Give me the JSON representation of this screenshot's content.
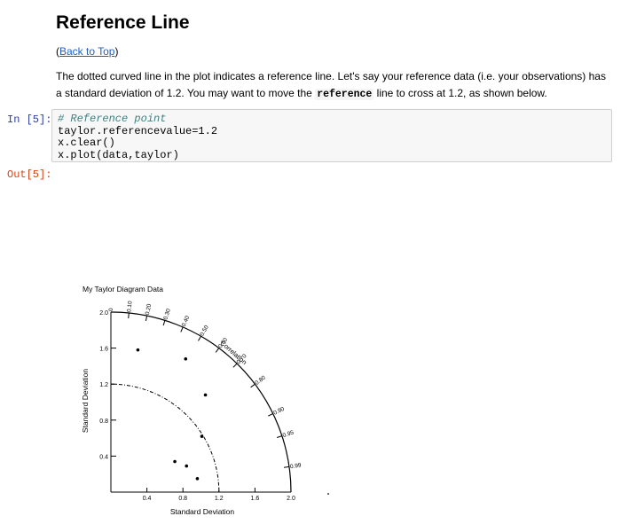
{
  "page": {
    "title": "Reference Line",
    "back_link": "Back to Top",
    "paragraph_before": "The dotted curved line in the plot indicates a reference line. Let's say your reference data (i.e. your observations) has a standard deviation of 1.2. You may want to move the ",
    "paragraph_code": "reference",
    "paragraph_after": " line to cross at 1.2, as shown below."
  },
  "cell": {
    "in_prompt": "In [5]:",
    "out_prompt": "Out[5]:",
    "lines": [
      "# Reference point",
      "taylor.referencevalue=1.2",
      "x.clear()",
      "x.plot(data,taylor)"
    ]
  },
  "chart_data": {
    "type": "scatter",
    "title": "My Taylor Diagram Data",
    "xlabel": "Standard Deviation",
    "ylabel": "Standard Deviation",
    "arc_label": "Correlation",
    "xlim": [
      0,
      2.0
    ],
    "ylim": [
      0,
      2.0
    ],
    "x_ticks": [
      "0.4",
      "0.8",
      "1.2",
      "1.6",
      "2.0"
    ],
    "y_ticks": [
      "0.4",
      "0.8",
      "1.2",
      "1.6",
      "2.0"
    ],
    "correlation_ticks": [
      "0",
      "0.10",
      "0.20",
      "0.30",
      "0.40",
      "0.50",
      "0.60",
      "0.70",
      "0.80",
      "0.90",
      "0.95",
      "0.99"
    ],
    "reference_value": 1.2,
    "points": [
      {
        "x": 0.3,
        "y": 1.58
      },
      {
        "x": 0.83,
        "y": 1.48
      },
      {
        "x": 1.05,
        "y": 1.08
      },
      {
        "x": 1.01,
        "y": 0.62
      },
      {
        "x": 0.71,
        "y": 0.34
      },
      {
        "x": 0.84,
        "y": 0.29
      },
      {
        "x": 0.96,
        "y": 0.15
      }
    ]
  }
}
